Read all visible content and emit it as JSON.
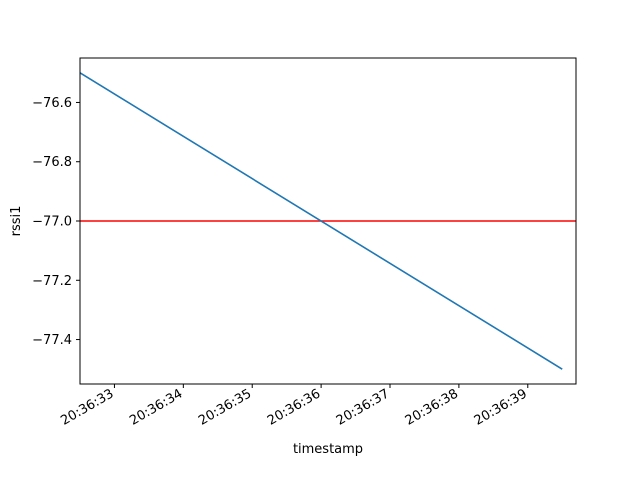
{
  "chart_data": {
    "type": "line",
    "xlabel": "timestamp",
    "ylabel": "rssi1",
    "x_ticks": [
      "20:36:33",
      "20:36:34",
      "20:36:35",
      "20:36:36",
      "20:36:37",
      "20:36:38",
      "20:36:39"
    ],
    "y_ticks": [
      -76.6,
      -76.8,
      -77.0,
      -77.2,
      -77.4
    ],
    "y_tick_labels": [
      "−76.6",
      "−76.8",
      "−77.0",
      "−77.2",
      "−77.4"
    ],
    "xlim": [
      "20:36:32.5",
      "20:36:39.7"
    ],
    "ylim": [
      -77.55,
      -76.45
    ],
    "series": [
      {
        "color": "#1f77b4",
        "x": [
          "20:36:32.5",
          "20:36:39.5"
        ],
        "y": [
          -76.5,
          -77.5
        ]
      }
    ],
    "hline": {
      "y": -77.0,
      "color": "#ff0000"
    },
    "grid": false
  }
}
